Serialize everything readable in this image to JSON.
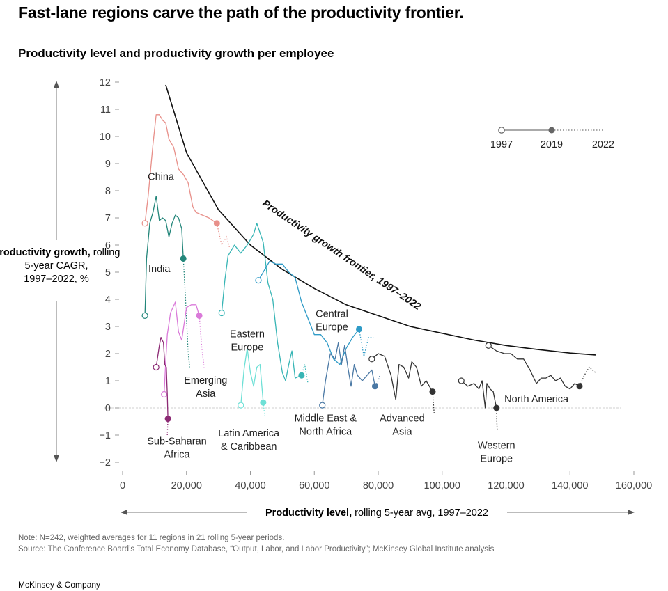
{
  "title": "Fast-lane regions carve the path of the productivity frontier.",
  "subtitle": "Productivity level and productivity growth per employee",
  "y_axis": {
    "bold": "Productivity growth,",
    "rest_1": " rolling",
    "line_2": "5-year CAGR,",
    "line_3": "1997–2022, %"
  },
  "x_axis": {
    "bold": "Productivity level,",
    "rest": " rolling 5-year avg, 1997–2022"
  },
  "legend": {
    "start": "1997",
    "mid": "2019",
    "end": "2022"
  },
  "frontier_label": "Productivity growth frontier, 1997–2022",
  "note": "Note: N=242, weighted averages for 11 regions in 21 rolling 5-year periods.",
  "source": "Source: The Conference Board’s Total Economy Database, “Output, Labor, and Labor Productivity”; McKinsey Global Institute analysis",
  "brand": "McKinsey & Company",
  "chart_data": {
    "type": "line",
    "xlim": [
      0,
      160000
    ],
    "ylim": [
      -2,
      12
    ],
    "x_ticks": [
      0,
      20000,
      40000,
      60000,
      80000,
      100000,
      120000,
      140000,
      160000
    ],
    "x_tick_labels": [
      "0",
      "20,000",
      "40,000",
      "60,000",
      "80,000",
      "100,000",
      "120,000",
      "140,000",
      "160,000"
    ],
    "y_ticks": [
      -2,
      -1,
      0,
      1,
      2,
      3,
      4,
      5,
      6,
      7,
      8,
      9,
      10,
      11,
      12
    ],
    "y_tick_labels": [
      "−2",
      "−1",
      "0",
      "1",
      "2",
      "3",
      "4",
      "5",
      "6",
      "7",
      "8",
      "9",
      "10",
      "11",
      "12"
    ],
    "frontier": {
      "name": "Productivity growth frontier, 1997–2022",
      "points": [
        [
          13500,
          11.9
        ],
        [
          20000,
          9.4
        ],
        [
          30000,
          7.3
        ],
        [
          40000,
          6.0
        ],
        [
          50000,
          5.1
        ],
        [
          60000,
          4.4
        ],
        [
          70000,
          3.8
        ],
        [
          80000,
          3.4
        ],
        [
          90000,
          3.0
        ],
        [
          100000,
          2.75
        ],
        [
          110000,
          2.5
        ],
        [
          120000,
          2.3
        ],
        [
          130000,
          2.15
        ],
        [
          140000,
          2.02
        ],
        [
          148000,
          1.95
        ]
      ]
    },
    "series": [
      {
        "name": "China",
        "label_lines": [
          "China"
        ],
        "color": "#e8908a",
        "label_at": [
          12000,
          8.4
        ],
        "solid": [
          [
            7000,
            6.8
          ],
          [
            8000,
            7.8
          ],
          [
            9500,
            9.7
          ],
          [
            10500,
            10.8
          ],
          [
            11500,
            10.8
          ],
          [
            12500,
            10.6
          ],
          [
            13500,
            10.5
          ],
          [
            14500,
            9.9
          ],
          [
            16000,
            9.6
          ],
          [
            17500,
            8.8
          ],
          [
            19000,
            8.6
          ],
          [
            20500,
            8.3
          ],
          [
            22000,
            7.4
          ],
          [
            23000,
            7.2
          ],
          [
            25000,
            7.1
          ],
          [
            27000,
            7.0
          ],
          [
            29500,
            6.8
          ]
        ],
        "dotted": [
          [
            29500,
            6.8
          ],
          [
            31000,
            6.0
          ],
          [
            32500,
            6.3
          ],
          [
            33500,
            5.9
          ]
        ]
      },
      {
        "name": "India",
        "label_lines": [
          "India"
        ],
        "color": "#23867a",
        "label_at": [
          11500,
          5.0
        ],
        "solid": [
          [
            7000,
            3.4
          ],
          [
            7500,
            5.5
          ],
          [
            8500,
            6.8
          ],
          [
            9500,
            7.2
          ],
          [
            10500,
            7.8
          ],
          [
            11500,
            6.9
          ],
          [
            12500,
            7.0
          ],
          [
            13500,
            6.9
          ],
          [
            14500,
            6.3
          ],
          [
            15500,
            6.8
          ],
          [
            16500,
            7.1
          ],
          [
            17500,
            7.0
          ],
          [
            18500,
            6.6
          ],
          [
            19000,
            5.5
          ]
        ],
        "dotted": [
          [
            19000,
            5.5
          ],
          [
            19800,
            3.8
          ],
          [
            20500,
            2.1
          ],
          [
            21000,
            1.5
          ]
        ]
      },
      {
        "name": "Emerging Asia",
        "label_lines": [
          "Emerging",
          "Asia"
        ],
        "color": "#da7ad9",
        "label_at": [
          26000,
          0.9
        ],
        "solid": [
          [
            13000,
            0.5
          ],
          [
            13500,
            1.7
          ],
          [
            14000,
            2.7
          ],
          [
            15000,
            3.5
          ],
          [
            16500,
            3.9
          ],
          [
            17500,
            2.8
          ],
          [
            18500,
            2.5
          ],
          [
            20000,
            3.7
          ],
          [
            21500,
            3.8
          ],
          [
            23000,
            3.8
          ],
          [
            24000,
            3.4
          ]
        ],
        "dotted": [
          [
            24000,
            3.4
          ],
          [
            24800,
            2.2
          ],
          [
            25500,
            1.5
          ]
        ]
      },
      {
        "name": "Sub-Saharan Africa",
        "label_lines": [
          "Sub-Saharan",
          "Africa"
        ],
        "color": "#8c2a74",
        "label_at": [
          17000,
          -1.35
        ],
        "solid": [
          [
            10500,
            1.5
          ],
          [
            11500,
            2.3
          ],
          [
            12000,
            2.6
          ],
          [
            12800,
            2.4
          ],
          [
            13200,
            1.6
          ],
          [
            13700,
            1.5
          ],
          [
            14000,
            0.5
          ],
          [
            14200,
            -0.4
          ]
        ],
        "dotted": [
          [
            14200,
            -0.4
          ],
          [
            14000,
            -1.0
          ]
        ]
      },
      {
        "name": "Eastern Europe",
        "label_lines": [
          "Eastern",
          "Europe"
        ],
        "color": "#37b5b5",
        "label_at": [
          39000,
          2.6
        ],
        "solid": [
          [
            31000,
            3.5
          ],
          [
            32000,
            4.7
          ],
          [
            33000,
            5.6
          ],
          [
            35000,
            6.0
          ],
          [
            37000,
            5.7
          ],
          [
            39000,
            6.0
          ],
          [
            41000,
            6.4
          ],
          [
            42000,
            6.8
          ],
          [
            44000,
            6.1
          ],
          [
            45500,
            4.6
          ],
          [
            47000,
            4.0
          ],
          [
            48500,
            2.4
          ],
          [
            50000,
            1.3
          ],
          [
            51000,
            1.0
          ],
          [
            52000,
            1.6
          ],
          [
            53000,
            2.1
          ],
          [
            54000,
            1.1
          ],
          [
            56000,
            1.2
          ]
        ],
        "dotted": [
          [
            56000,
            1.2
          ],
          [
            57000,
            1.6
          ],
          [
            58000,
            0.9
          ]
        ]
      },
      {
        "name": "Latin America & Caribbean",
        "label_lines": [
          "Latin America",
          "& Caribbean"
        ],
        "color": "#6ee0d6",
        "label_at": [
          39500,
          -1.05
        ],
        "solid": [
          [
            37000,
            0.1
          ],
          [
            38000,
            1.4
          ],
          [
            39000,
            2.2
          ],
          [
            40000,
            1.3
          ],
          [
            41000,
            0.8
          ],
          [
            42000,
            1.5
          ],
          [
            43000,
            1.6
          ],
          [
            44000,
            0.2
          ]
        ],
        "dotted": [
          [
            44000,
            0.2
          ],
          [
            44500,
            -0.3
          ]
        ]
      },
      {
        "name": "Central Europe",
        "label_lines": [
          "Central",
          "Europe"
        ],
        "color": "#2f9bc7",
        "label_at": [
          65500,
          3.35
        ],
        "solid": [
          [
            42500,
            4.7
          ],
          [
            44000,
            5.0
          ],
          [
            46000,
            5.4
          ],
          [
            48000,
            5.3
          ],
          [
            50000,
            5.3
          ],
          [
            52000,
            5.0
          ],
          [
            54000,
            4.8
          ],
          [
            56000,
            3.9
          ],
          [
            58000,
            3.3
          ],
          [
            60000,
            2.7
          ],
          [
            62000,
            2.7
          ],
          [
            64000,
            2.4
          ],
          [
            66000,
            1.8
          ],
          [
            68000,
            1.6
          ],
          [
            70000,
            2.2
          ],
          [
            72000,
            2.6
          ],
          [
            74000,
            2.9
          ]
        ],
        "dotted": [
          [
            74000,
            2.9
          ],
          [
            75500,
            1.9
          ],
          [
            77000,
            2.6
          ],
          [
            78500,
            2.6
          ]
        ]
      },
      {
        "name": "Middle East & North Africa",
        "label_lines": [
          "Middle East &",
          "North Africa"
        ],
        "color": "#4a78a4",
        "label_at": [
          63500,
          -0.5
        ],
        "solid": [
          [
            62500,
            0.1
          ],
          [
            63500,
            1.0
          ],
          [
            65000,
            2.0
          ],
          [
            66500,
            1.8
          ],
          [
            67500,
            2.4
          ],
          [
            68500,
            1.6
          ],
          [
            69500,
            2.3
          ],
          [
            70500,
            1.5
          ],
          [
            71500,
            0.8
          ],
          [
            72500,
            1.6
          ],
          [
            73500,
            1.2
          ],
          [
            75000,
            1.0
          ],
          [
            76500,
            1.2
          ],
          [
            78000,
            1.4
          ],
          [
            79000,
            0.8
          ]
        ],
        "dotted": [
          [
            79000,
            0.8
          ],
          [
            80000,
            1.0
          ],
          [
            80500,
            1.2
          ]
        ]
      },
      {
        "name": "Advanced Asia",
        "label_lines": [
          "Advanced",
          "Asia"
        ],
        "color": "#333333",
        "label_at": [
          87500,
          -0.5
        ],
        "solid": [
          [
            78000,
            1.8
          ],
          [
            80000,
            2.0
          ],
          [
            82000,
            1.9
          ],
          [
            84000,
            1.2
          ],
          [
            85500,
            0.3
          ],
          [
            86500,
            1.6
          ],
          [
            88000,
            1.5
          ],
          [
            89500,
            1.1
          ],
          [
            90500,
            1.7
          ],
          [
            92000,
            1.5
          ],
          [
            93500,
            0.8
          ],
          [
            95000,
            1.0
          ],
          [
            97000,
            0.6
          ]
        ],
        "dotted": [
          [
            97000,
            0.6
          ],
          [
            97500,
            -0.2
          ]
        ]
      },
      {
        "name": "Western Europe",
        "label_lines": [
          "Western",
          "Europe"
        ],
        "color": "#333333",
        "label_at": [
          117000,
          -1.5
        ],
        "solid": [
          [
            106000,
            1.0
          ],
          [
            108000,
            0.8
          ],
          [
            110000,
            0.9
          ],
          [
            111500,
            0.7
          ],
          [
            112500,
            1.0
          ],
          [
            113500,
            0.0
          ],
          [
            114000,
            0.9
          ],
          [
            115000,
            0.7
          ],
          [
            116000,
            0.6
          ],
          [
            117000,
            0.0
          ]
        ],
        "dotted": [
          [
            117000,
            0.0
          ],
          [
            117200,
            -0.8
          ]
        ]
      },
      {
        "name": "North America",
        "label_lines": [
          "North America"
        ],
        "color": "#333333",
        "label_at": [
          129500,
          0.2
        ],
        "solid": [
          [
            114500,
            2.3
          ],
          [
            117000,
            2.1
          ],
          [
            119500,
            2.0
          ],
          [
            121500,
            2.0
          ],
          [
            123500,
            1.8
          ],
          [
            125500,
            1.8
          ],
          [
            127500,
            1.4
          ],
          [
            129500,
            0.9
          ],
          [
            131000,
            1.1
          ],
          [
            132500,
            1.1
          ],
          [
            134000,
            1.2
          ],
          [
            135500,
            1.0
          ],
          [
            137000,
            1.1
          ],
          [
            138500,
            0.8
          ],
          [
            140000,
            0.7
          ],
          [
            141500,
            0.9
          ],
          [
            143000,
            0.8
          ]
        ],
        "dotted": [
          [
            143000,
            0.8
          ],
          [
            144500,
            1.2
          ],
          [
            146000,
            1.5
          ],
          [
            148000,
            1.3
          ]
        ]
      }
    ]
  }
}
